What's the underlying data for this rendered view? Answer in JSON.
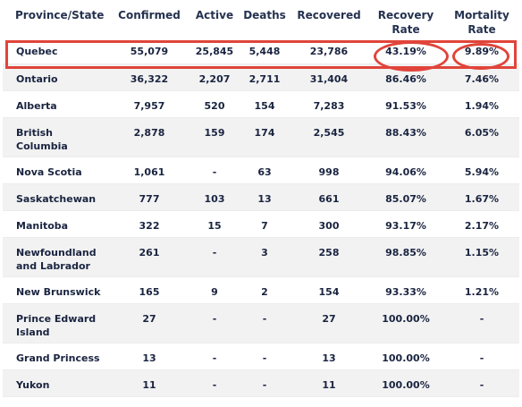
{
  "table": {
    "headers": [
      "Province/State",
      "Confirmed",
      "Active",
      "Deaths",
      "Recovered",
      "Recovery Rate",
      "Mortality Rate"
    ],
    "rows": [
      [
        "Quebec",
        "55,079",
        "25,845",
        "5,448",
        "23,786",
        "43.19%",
        "9.89%"
      ],
      [
        "Ontario",
        "36,322",
        "2,207",
        "2,711",
        "31,404",
        "86.46%",
        "7.46%"
      ],
      [
        "Alberta",
        "7,957",
        "520",
        "154",
        "7,283",
        "91.53%",
        "1.94%"
      ],
      [
        "British Columbia",
        "2,878",
        "159",
        "174",
        "2,545",
        "88.43%",
        "6.05%"
      ],
      [
        "Nova Scotia",
        "1,061",
        "-",
        "63",
        "998",
        "94.06%",
        "5.94%"
      ],
      [
        "Saskatchewan",
        "777",
        "103",
        "13",
        "661",
        "85.07%",
        "1.67%"
      ],
      [
        "Manitoba",
        "322",
        "15",
        "7",
        "300",
        "93.17%",
        "2.17%"
      ],
      [
        "Newfoundland and Labrador",
        "261",
        "-",
        "3",
        "258",
        "98.85%",
        "1.15%"
      ],
      [
        "New Brunswick",
        "165",
        "9",
        "2",
        "154",
        "93.33%",
        "1.21%"
      ],
      [
        "Prince Edward Island",
        "27",
        "-",
        "-",
        "27",
        "100.00%",
        "-"
      ],
      [
        "Grand Princess",
        "13",
        "-",
        "-",
        "13",
        "100.00%",
        "-"
      ],
      [
        "Yukon",
        "11",
        "-",
        "-",
        "11",
        "100.00%",
        "-"
      ]
    ]
  },
  "highlight_color": "#e0443a",
  "alt_row_color": "#f2f2f2",
  "text_color": "#1a2440"
}
